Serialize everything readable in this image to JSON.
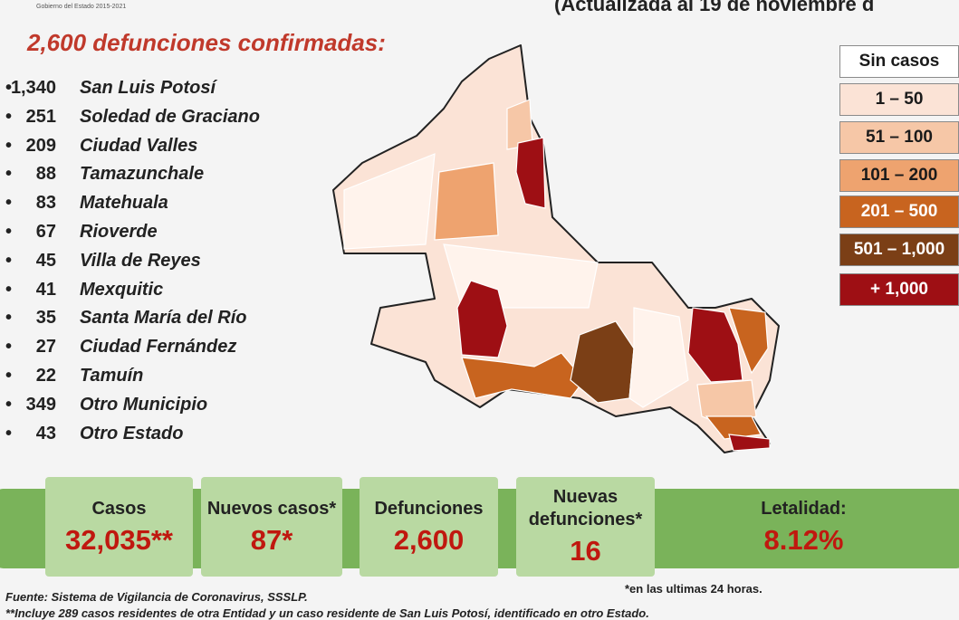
{
  "header": {
    "logo_caption": "Gobierno del Estado 2015-2021",
    "update_note": "(Actualizada al 19 de noviembre d",
    "title": "2,600 defunciones confirmadas:"
  },
  "municipalities": [
    {
      "count": "1,340",
      "name": "San Luis Potosí"
    },
    {
      "count": "251",
      "name": "Soledad de Graciano"
    },
    {
      "count": "209",
      "name": "Ciudad Valles"
    },
    {
      "count": "88",
      "name": "Tamazunchale"
    },
    {
      "count": "83",
      "name": "Matehuala"
    },
    {
      "count": "67",
      "name": "Rioverde"
    },
    {
      "count": "45",
      "name": "Villa de Reyes"
    },
    {
      "count": "41",
      "name": "Mexquitic"
    },
    {
      "count": "35",
      "name": "Santa María del Río"
    },
    {
      "count": "27",
      "name": "Ciudad Fernández"
    },
    {
      "count": "22",
      "name": "Tamuín"
    },
    {
      "count": "349",
      "name": "Otro Municipio"
    },
    {
      "count": "43",
      "name": "Otro Estado"
    }
  ],
  "legend": [
    {
      "label": "Sin casos",
      "color": "#ffffff",
      "text_color": "#1a1a1a"
    },
    {
      "label": "1 – 50",
      "color": "#fbe3d6",
      "text_color": "#1a1a1a"
    },
    {
      "label": "51 – 100",
      "color": "#f6c7a7",
      "text_color": "#1a1a1a"
    },
    {
      "label": "101 – 200",
      "color": "#eea36f",
      "text_color": "#1a1a1a"
    },
    {
      "label": "201 – 500",
      "color": "#c8641f",
      "text_color": "#ffffff"
    },
    {
      "label": "501 – 1,000",
      "color": "#7b3f16",
      "text_color": "#ffffff"
    },
    {
      "label": "+ 1,000",
      "color": "#9e0f14",
      "text_color": "#ffffff"
    }
  ],
  "stats": [
    {
      "label": "Casos",
      "value": "32,035**"
    },
    {
      "label": "Nuevos casos*",
      "value": "87*"
    },
    {
      "label": "Defunciones",
      "value": "2,600"
    },
    {
      "label": "Nuevas defunciones*",
      "value": "16"
    },
    {
      "label": "Letalidad:",
      "value": "8.12%"
    }
  ],
  "footnotes": {
    "last_24h": "*en las ultimas 24 horas.",
    "source": "Fuente: Sistema de Vigilancia de Coronavirus, SSSLP.",
    "note": "**Incluye 289 casos residentes de otra Entidad y un caso residente de San Luis Potosí, identificado en otro Estado."
  }
}
